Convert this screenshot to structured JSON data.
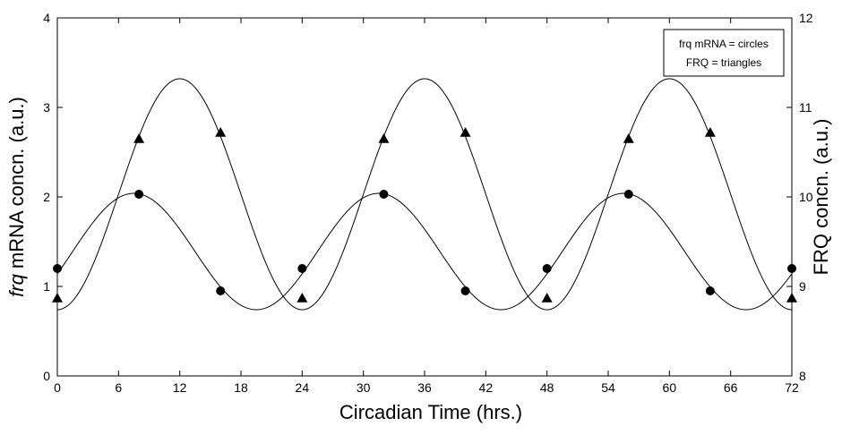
{
  "chart_data": {
    "type": "line",
    "xlabel": "Circadian Time (hrs.)",
    "ylabel_left": "frq mRNA concn. (a.u.)",
    "ylabel_left_italic_part": "frq",
    "ylabel_left_rest": " mRNA concn. (a.u.)",
    "ylabel_right": "FRQ concn. (a.u.)",
    "xlim": [
      0,
      72
    ],
    "ylim_left": [
      0,
      4
    ],
    "ylim_right": [
      8,
      12
    ],
    "x_ticks": [
      0,
      6,
      12,
      18,
      24,
      30,
      36,
      42,
      48,
      54,
      60,
      66,
      72
    ],
    "y_ticks_left": [
      0,
      1,
      2,
      3,
      4
    ],
    "y_ticks_right": [
      8,
      9,
      10,
      11,
      12
    ],
    "legend": [
      "frq mRNA = circles",
      "FRQ = triangles"
    ],
    "legend_position": "top-right",
    "grid": false,
    "series": [
      {
        "name": "frq mRNA",
        "axis": "left",
        "marker": "circle",
        "curve": {
          "mean": 1.39,
          "amplitude": 0.65,
          "period": 24,
          "peak_ct": 7.5
        },
        "points": {
          "x": [
            0,
            8,
            16,
            24,
            32,
            40,
            48,
            56,
            64,
            72
          ],
          "y": [
            1.2,
            2.03,
            0.95,
            1.2,
            2.03,
            0.95,
            1.2,
            2.03,
            0.95,
            1.2
          ]
        }
      },
      {
        "name": "FRQ",
        "axis": "right",
        "marker": "triangle",
        "curve": {
          "mean": 10.03,
          "amplitude": 1.29,
          "period": 24,
          "peak_ct": 12
        },
        "points": {
          "x": [
            0,
            8,
            16,
            24,
            32,
            40,
            48,
            56,
            64,
            72
          ],
          "y": [
            8.87,
            10.65,
            10.72,
            8.87,
            10.65,
            10.72,
            8.87,
            10.65,
            10.72,
            8.87
          ]
        }
      }
    ]
  }
}
